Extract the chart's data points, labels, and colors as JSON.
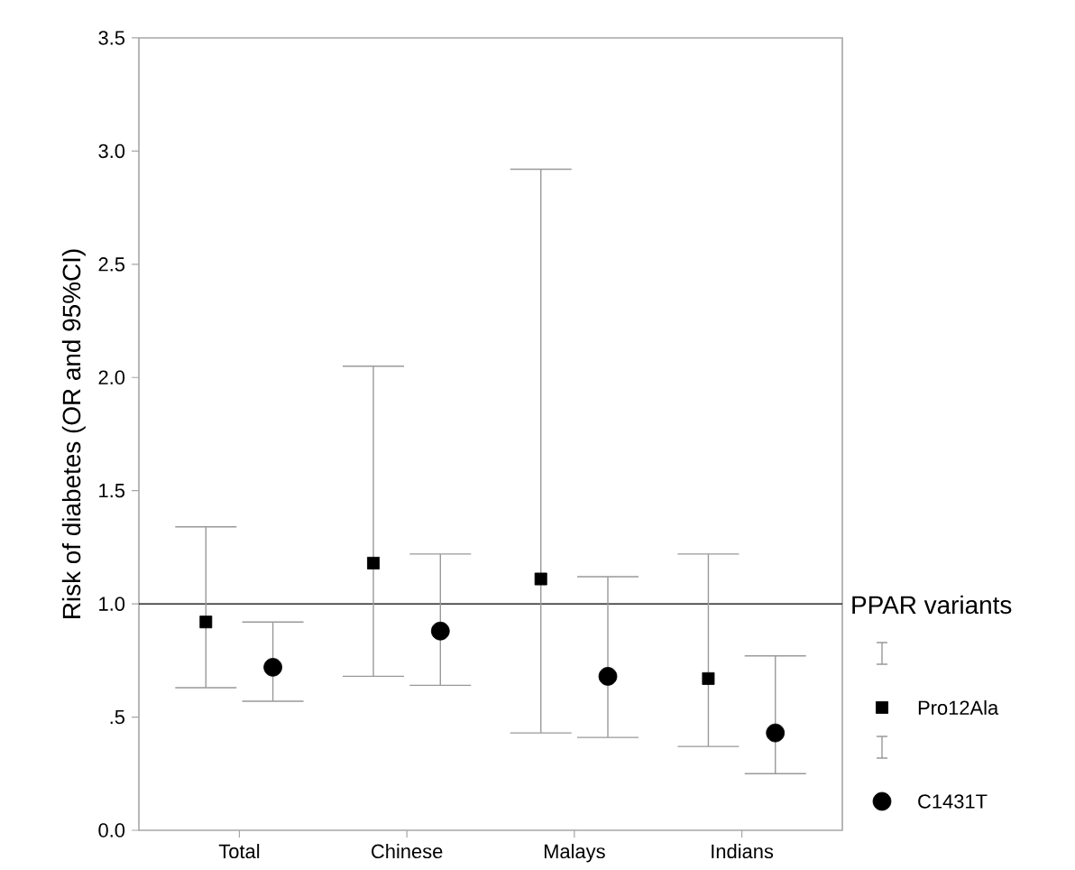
{
  "chart_data": {
    "type": "scatter",
    "ylabel": "Risk of diabetes (OR and 95%CI)",
    "legend_title": "PPAR variants",
    "legend": "right",
    "categories": [
      "Total",
      "Chinese",
      "Malays",
      "Indians"
    ],
    "ylim": [
      0,
      3.5
    ],
    "yticks": [
      {
        "value": 0,
        "label": "0.0"
      },
      {
        "value": 0.5,
        "label": ".5"
      },
      {
        "value": 1,
        "label": "1.0"
      },
      {
        "value": 1.5,
        "label": "1.5"
      },
      {
        "value": 2,
        "label": "2.0"
      },
      {
        "value": 2.5,
        "label": "2.5"
      },
      {
        "value": 3,
        "label": "3.0"
      },
      {
        "value": 3.5,
        "label": "3.5"
      }
    ],
    "grid": false,
    "ref_lines": [
      {
        "axis": "y",
        "value": 1,
        "color": "#000000"
      }
    ],
    "series": [
      {
        "name": "Pro12Ala",
        "color": "#000000",
        "marker": "square",
        "values": [
          0.92,
          1.18,
          1.11,
          0.67
        ],
        "errors": [
          [
            0.63,
            1.34
          ],
          [
            0.68,
            2.05
          ],
          [
            0.43,
            2.92
          ],
          [
            0.37,
            1.22
          ]
        ]
      },
      {
        "name": "C1431T",
        "color": "#000000",
        "marker": "circle",
        "values": [
          0.72,
          0.88,
          0.68,
          0.43
        ],
        "errors": [
          [
            0.57,
            0.92
          ],
          [
            0.64,
            1.22
          ],
          [
            0.41,
            1.12
          ],
          [
            0.25,
            0.77
          ]
        ]
      }
    ]
  }
}
